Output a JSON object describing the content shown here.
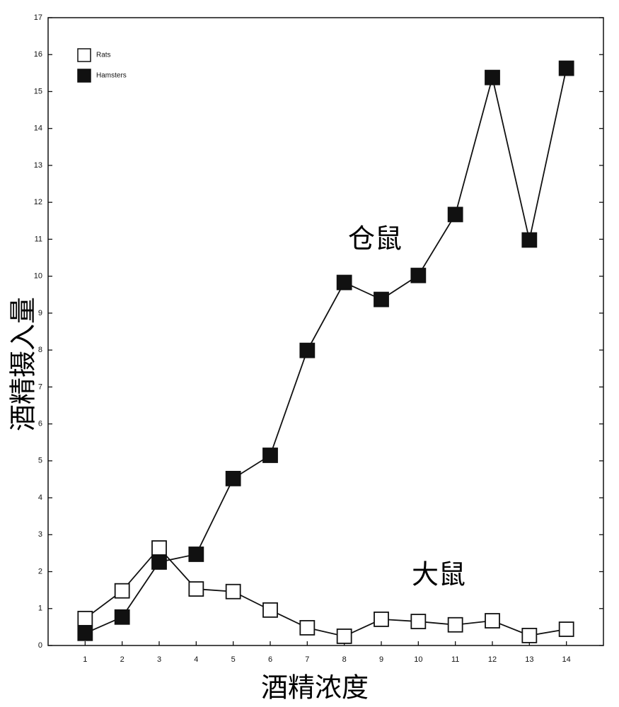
{
  "chart_data": {
    "type": "line",
    "xlabel": "酒精浓度",
    "ylabel": "酒精摄入量",
    "x": [
      1,
      2,
      3,
      4,
      5,
      6,
      7,
      8,
      9,
      10,
      11,
      12,
      13,
      14
    ],
    "series": [
      {
        "name": "Rats",
        "color": "#ffffff",
        "values": [
          0.73,
          1.48,
          2.64,
          1.53,
          1.46,
          0.96,
          0.48,
          0.25,
          0.71,
          0.65,
          0.56,
          0.67,
          0.27,
          0.44
        ]
      },
      {
        "name": "Hamsters",
        "color": "#111111",
        "values": [
          0.33,
          0.77,
          2.26,
          2.47,
          4.52,
          5.15,
          7.99,
          9.83,
          9.37,
          10.02,
          11.67,
          15.38,
          10.98,
          15.63
        ]
      }
    ],
    "annotations": [
      "仓鼠",
      "大鼠"
    ],
    "xlim": [
      0,
      15
    ],
    "xticks": [
      1,
      2,
      3,
      4,
      5,
      6,
      7,
      8,
      9,
      10,
      11,
      12,
      13,
      14
    ],
    "ylim": [
      0,
      17
    ],
    "yticks": [
      0,
      1,
      2,
      3,
      4,
      5,
      6,
      7,
      8,
      9,
      10,
      11,
      12,
      13,
      14,
      15,
      16,
      17
    ],
    "legend": "upper left"
  }
}
